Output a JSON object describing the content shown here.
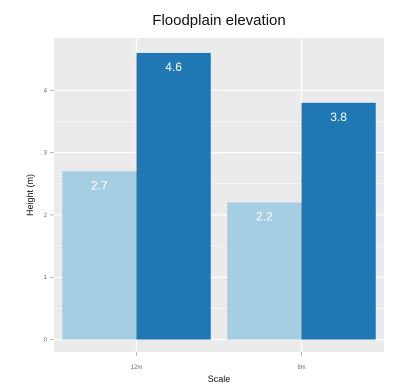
{
  "chart_data": {
    "type": "bar",
    "title": "Floodplain elevation",
    "xlabel": "Scale",
    "ylabel": "Height (m)",
    "categories": [
      "12m",
      "8m"
    ],
    "series": [
      {
        "values": [
          2.7,
          2.2
        ],
        "color": "#a6cee3"
      },
      {
        "values": [
          4.6,
          3.8
        ],
        "color": "#1f78b4"
      }
    ],
    "data_labels": [
      [
        "2.7",
        "2.2"
      ],
      [
        "4.6",
        "3.8"
      ]
    ],
    "yticks": [
      0,
      1,
      2,
      3,
      4
    ],
    "ylim": [
      -0.2,
      4.84
    ],
    "grid": true,
    "background": "#ebebeb",
    "gridline_color": "#ffffff"
  }
}
